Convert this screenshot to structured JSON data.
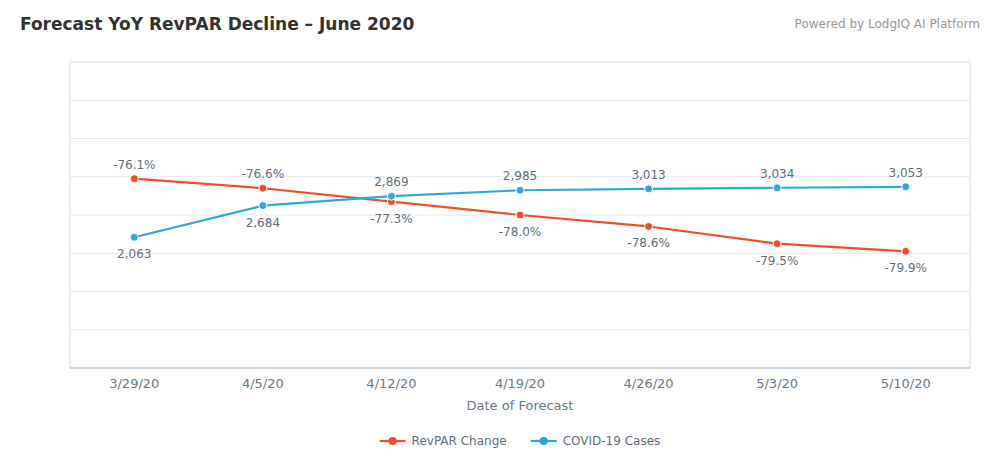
{
  "chart_data": {
    "type": "line",
    "title": "Forecast YoY RevPAR Decline – June 2020",
    "annotations": [
      "Powered by LodgIQ AI Platform"
    ],
    "x_label": "Date of Forecast",
    "categories": [
      "3/29/20",
      "4/5/20",
      "4/12/20",
      "4/19/20",
      "4/26/20",
      "5/3/20",
      "5/10/20"
    ],
    "series": [
      {
        "name": "RevPAR Change",
        "color": "#F04E2B",
        "values": [
          -76.1,
          -76.6,
          -77.3,
          -78.0,
          -78.6,
          -79.5,
          -79.9
        ],
        "value_labels": [
          "-76.1%",
          "-76.6%",
          "-77.3%",
          "-78.0%",
          "-78.6%",
          "-79.5%",
          "-79.9%"
        ]
      },
      {
        "name": "COVID-19 Cases",
        "color": "#29ABD4",
        "axis": "y2",
        "values": [
          2063,
          2684,
          2869,
          2985,
          3013,
          3034,
          3053
        ],
        "value_labels": [
          "2,063",
          "2,684",
          "2,869",
          "2,985",
          "3,013",
          "3,034",
          "3,053"
        ]
      }
    ],
    "ylim": [
      -86,
      -70
    ],
    "yticks": [
      -84,
      -82,
      -80,
      -78,
      -76,
      -74,
      -72
    ],
    "y2lim": [
      -500,
      5500
    ],
    "grid": true,
    "tick_labels": "x",
    "data_labels": true,
    "marker": "circle",
    "legend": "bottom"
  }
}
